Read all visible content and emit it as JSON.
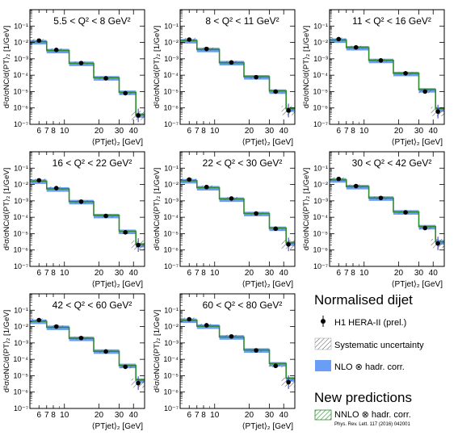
{
  "legend": {
    "heading": "Normalised dijet",
    "data_label": "H1 HERA-II (prel.)",
    "syst_label": "Systematic uncertainty",
    "nlo_label": "NLO ⊗ hadr. corr.",
    "new_heading": "New predictions",
    "nnlo_label": "NNLO ⊗ hadr. corr.",
    "nnlo_ref": "Phys. Rev. Lett. 117 (2016) 042001"
  },
  "colors": {
    "nlo_band": "#6a9ef5",
    "nnlo": "#2e8b2e",
    "data": "#000000",
    "syst_hatch": "#555555",
    "stat_err": "#3333cc"
  },
  "axis": {
    "ylabel": "d²σ/σNC/d⟨PT⟩₂ [1/GeV]",
    "xlabel": "⟨PTjet⟩₂ [GeV]",
    "x_ticklabels": [
      "6",
      "7",
      "8",
      "10",
      "20",
      "30",
      "40"
    ],
    "y_ticklabels": [
      "10⁻¹",
      "10⁻²",
      "10⁻³",
      "10⁻⁴",
      "10⁻⁵",
      "10⁻⁶",
      "10⁻⁷"
    ]
  },
  "chart_data": [
    {
      "type": "step",
      "title": "5.5 < Q² < 8 GeV²",
      "x_scale": "log",
      "xlim": [
        5,
        50
      ],
      "y_scale": "log",
      "ylim": [
        1e-07,
        1
      ],
      "bin_edges": [
        5,
        7,
        11,
        18,
        30,
        42,
        50
      ],
      "x": [
        6,
        8.5,
        14,
        23,
        34,
        44
      ],
      "data": [
        0.013,
        0.0035,
        0.00055,
        6.5e-05,
        8e-06,
        3.5e-07
      ],
      "nlo": [
        0.0105,
        0.003,
        0.0005,
        6.5e-05,
        8.5e-06,
        3.5e-07
      ],
      "nnlo": [
        0.011,
        0.0032,
        0.00053,
        7e-05,
        9e-06,
        3.8e-07
      ]
    },
    {
      "type": "step",
      "title": "8 < Q² < 11 GeV²",
      "x_scale": "log",
      "xlim": [
        5,
        50
      ],
      "y_scale": "log",
      "ylim": [
        1e-07,
        1
      ],
      "bin_edges": [
        5,
        7,
        11,
        18,
        30,
        42,
        50
      ],
      "x": [
        6,
        8.5,
        14,
        23,
        34,
        44
      ],
      "data": [
        0.015,
        0.004,
        0.0006,
        7.5e-05,
        1e-05,
        7e-07
      ],
      "nlo": [
        0.012,
        0.0035,
        0.00055,
        7.5e-05,
        1e-05,
        8e-07
      ],
      "nnlo": [
        0.013,
        0.0037,
        0.00058,
        8e-05,
        1.1e-05,
        9e-07
      ]
    },
    {
      "type": "step",
      "title": "11 < Q² < 16 GeV²",
      "x_scale": "log",
      "xlim": [
        5,
        50
      ],
      "y_scale": "log",
      "ylim": [
        1e-07,
        1
      ],
      "bin_edges": [
        5,
        7,
        11,
        18,
        30,
        42,
        50
      ],
      "x": [
        6,
        8.5,
        14,
        23,
        34,
        44
      ],
      "data": [
        0.016,
        0.005,
        0.0008,
        0.00013,
        1e-05,
        6e-07
      ],
      "nlo": [
        0.013,
        0.0045,
        0.00075,
        0.00012,
        1.2e-05,
        8e-07
      ],
      "nnlo": [
        0.014,
        0.0048,
        0.0008,
        0.00013,
        1.3e-05,
        9e-07
      ]
    },
    {
      "type": "step",
      "title": "16 < Q² < 22 GeV²",
      "x_scale": "log",
      "xlim": [
        5,
        50
      ],
      "y_scale": "log",
      "ylim": [
        1e-07,
        1
      ],
      "bin_edges": [
        5,
        7,
        11,
        18,
        30,
        42,
        50
      ],
      "x": [
        6,
        8.5,
        14,
        23,
        34,
        44
      ],
      "data": [
        0.018,
        0.006,
        0.0009,
        0.00012,
        1.2e-05,
        2e-06
      ],
      "nlo": [
        0.015,
        0.005,
        0.00085,
        0.00012,
        1.3e-05,
        2e-06
      ],
      "nnlo": [
        0.016,
        0.0054,
        0.0009,
        0.00013,
        1.4e-05,
        2.2e-06
      ]
    },
    {
      "type": "step",
      "title": "22 < Q² < 30 GeV²",
      "x_scale": "log",
      "xlim": [
        5,
        50
      ],
      "y_scale": "log",
      "ylim": [
        1e-07,
        1
      ],
      "bin_edges": [
        5,
        7,
        11,
        18,
        30,
        42,
        50
      ],
      "x": [
        6,
        8.5,
        14,
        23,
        34,
        44
      ],
      "data": [
        0.02,
        0.007,
        0.0014,
        0.00017,
        2e-05,
        2.2e-06
      ],
      "nlo": [
        0.016,
        0.006,
        0.0012,
        0.00016,
        2e-05,
        2.5e-06
      ],
      "nnlo": [
        0.017,
        0.0064,
        0.0013,
        0.00017,
        2.2e-05,
        2.7e-06
      ]
    },
    {
      "type": "step",
      "title": "30 < Q² < 42 GeV²",
      "x_scale": "log",
      "xlim": [
        5,
        50
      ],
      "y_scale": "log",
      "ylim": [
        1e-07,
        1
      ],
      "bin_edges": [
        5,
        7,
        11,
        18,
        30,
        42,
        50
      ],
      "x": [
        6,
        8.5,
        14,
        23,
        34,
        44
      ],
      "data": [
        0.022,
        0.008,
        0.0015,
        0.0002,
        2.2e-05,
        2.5e-06
      ],
      "nlo": [
        0.018,
        0.007,
        0.0014,
        0.0002,
        2.5e-05,
        3e-06
      ],
      "nnlo": [
        0.019,
        0.0074,
        0.0015,
        0.00021,
        2.7e-05,
        3.2e-06
      ]
    },
    {
      "type": "step",
      "title": "42 < Q² < 60 GeV²",
      "x_scale": "log",
      "xlim": [
        5,
        50
      ],
      "y_scale": "log",
      "ylim": [
        1e-07,
        1
      ],
      "bin_edges": [
        5,
        7,
        11,
        18,
        30,
        42,
        50
      ],
      "x": [
        6,
        8.5,
        14,
        23,
        34,
        44
      ],
      "data": [
        0.025,
        0.01,
        0.002,
        0.0003,
        3.5e-05,
        3.5e-06
      ],
      "nlo": [
        0.02,
        0.0085,
        0.0018,
        0.0003,
        4e-05,
        5e-06
      ],
      "nnlo": [
        0.021,
        0.009,
        0.0019,
        0.00031,
        4.2e-05,
        5.5e-06
      ]
    },
    {
      "type": "step",
      "title": "60 < Q² < 80 GeV²",
      "x_scale": "log",
      "xlim": [
        5,
        50
      ],
      "y_scale": "log",
      "ylim": [
        1e-07,
        1
      ],
      "bin_edges": [
        5,
        7,
        11,
        18,
        30,
        42,
        50
      ],
      "x": [
        6,
        8.5,
        14,
        23,
        34,
        44
      ],
      "data": [
        0.028,
        0.012,
        0.0025,
        0.00035,
        4e-05,
        4e-06
      ],
      "nlo": [
        0.023,
        0.01,
        0.0022,
        0.00035,
        5e-05,
        6e-06
      ],
      "nnlo": [
        0.024,
        0.0105,
        0.0023,
        0.00037,
        5.5e-05,
        7e-06
      ]
    }
  ]
}
